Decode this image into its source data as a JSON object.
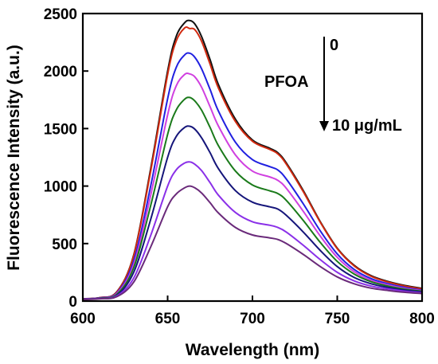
{
  "chart_data": {
    "type": "line",
    "xlabel": "Wavelength (nm)",
    "ylabel": "Fluorescence Intensity (a.u.)",
    "xlim": [
      600,
      800
    ],
    "ylim": [
      0,
      2500
    ],
    "x_ticks": [
      "600",
      "650",
      "700",
      "750",
      "800"
    ],
    "y_ticks": [
      "0",
      "500",
      "1000",
      "1500",
      "2000",
      "2500"
    ],
    "grid": false,
    "annotations": {
      "analyte": "PFOA",
      "start_conc": "0",
      "end_conc": "10 μg/mL"
    },
    "x": [
      600,
      610,
      620,
      630,
      640,
      650,
      655,
      660,
      663,
      666,
      670,
      675,
      680,
      690,
      700,
      710,
      715,
      720,
      730,
      740,
      750,
      760,
      770,
      780,
      790,
      800
    ],
    "series": [
      {
        "color": "#111111",
        "values": [
          20,
          30,
          80,
          400,
          1150,
          2000,
          2300,
          2420,
          2440,
          2410,
          2300,
          2100,
          1880,
          1580,
          1400,
          1330,
          1290,
          1200,
          960,
          690,
          460,
          310,
          220,
          170,
          135,
          110
        ]
      },
      {
        "color": "#d22a10",
        "values": [
          20,
          30,
          78,
          395,
          1130,
          1970,
          2260,
          2375,
          2370,
          2360,
          2260,
          2060,
          1850,
          1560,
          1390,
          1320,
          1280,
          1190,
          950,
          685,
          455,
          305,
          215,
          165,
          130,
          105
        ]
      },
      {
        "color": "#2020e0",
        "values": [
          18,
          28,
          70,
          350,
          1000,
          1760,
          2030,
          2140,
          2155,
          2120,
          2020,
          1840,
          1650,
          1380,
          1230,
          1170,
          1140,
          1060,
          845,
          610,
          410,
          275,
          195,
          150,
          118,
          95
        ]
      },
      {
        "color": "#d040e0",
        "values": [
          18,
          27,
          65,
          320,
          920,
          1620,
          1870,
          1970,
          1975,
          1950,
          1860,
          1690,
          1520,
          1270,
          1130,
          1080,
          1050,
          980,
          780,
          565,
          380,
          255,
          180,
          140,
          110,
          90
        ]
      },
      {
        "color": "#1a7a1a",
        "values": [
          16,
          26,
          58,
          290,
          830,
          1450,
          1660,
          1755,
          1770,
          1740,
          1660,
          1510,
          1350,
          1130,
          1010,
          960,
          935,
          875,
          700,
          510,
          345,
          235,
          168,
          130,
          103,
          85
        ]
      },
      {
        "color": "#15157a",
        "values": [
          15,
          24,
          50,
          250,
          710,
          1250,
          1430,
          1510,
          1520,
          1495,
          1420,
          1290,
          1150,
          960,
          860,
          820,
          800,
          745,
          600,
          440,
          300,
          205,
          150,
          118,
          95,
          80
        ]
      },
      {
        "color": "#8a30e8",
        "values": [
          14,
          22,
          44,
          200,
          570,
          1000,
          1140,
          1200,
          1210,
          1190,
          1135,
          1030,
          920,
          770,
          690,
          660,
          640,
          600,
          485,
          360,
          250,
          175,
          130,
          105,
          85,
          72
        ]
      },
      {
        "color": "#6a2a7a",
        "values": [
          13,
          20,
          38,
          165,
          470,
          820,
          930,
          985,
          1000,
          985,
          940,
          855,
          765,
          640,
          575,
          550,
          535,
          500,
          405,
          300,
          210,
          150,
          112,
          92,
          76,
          65
        ]
      }
    ]
  }
}
